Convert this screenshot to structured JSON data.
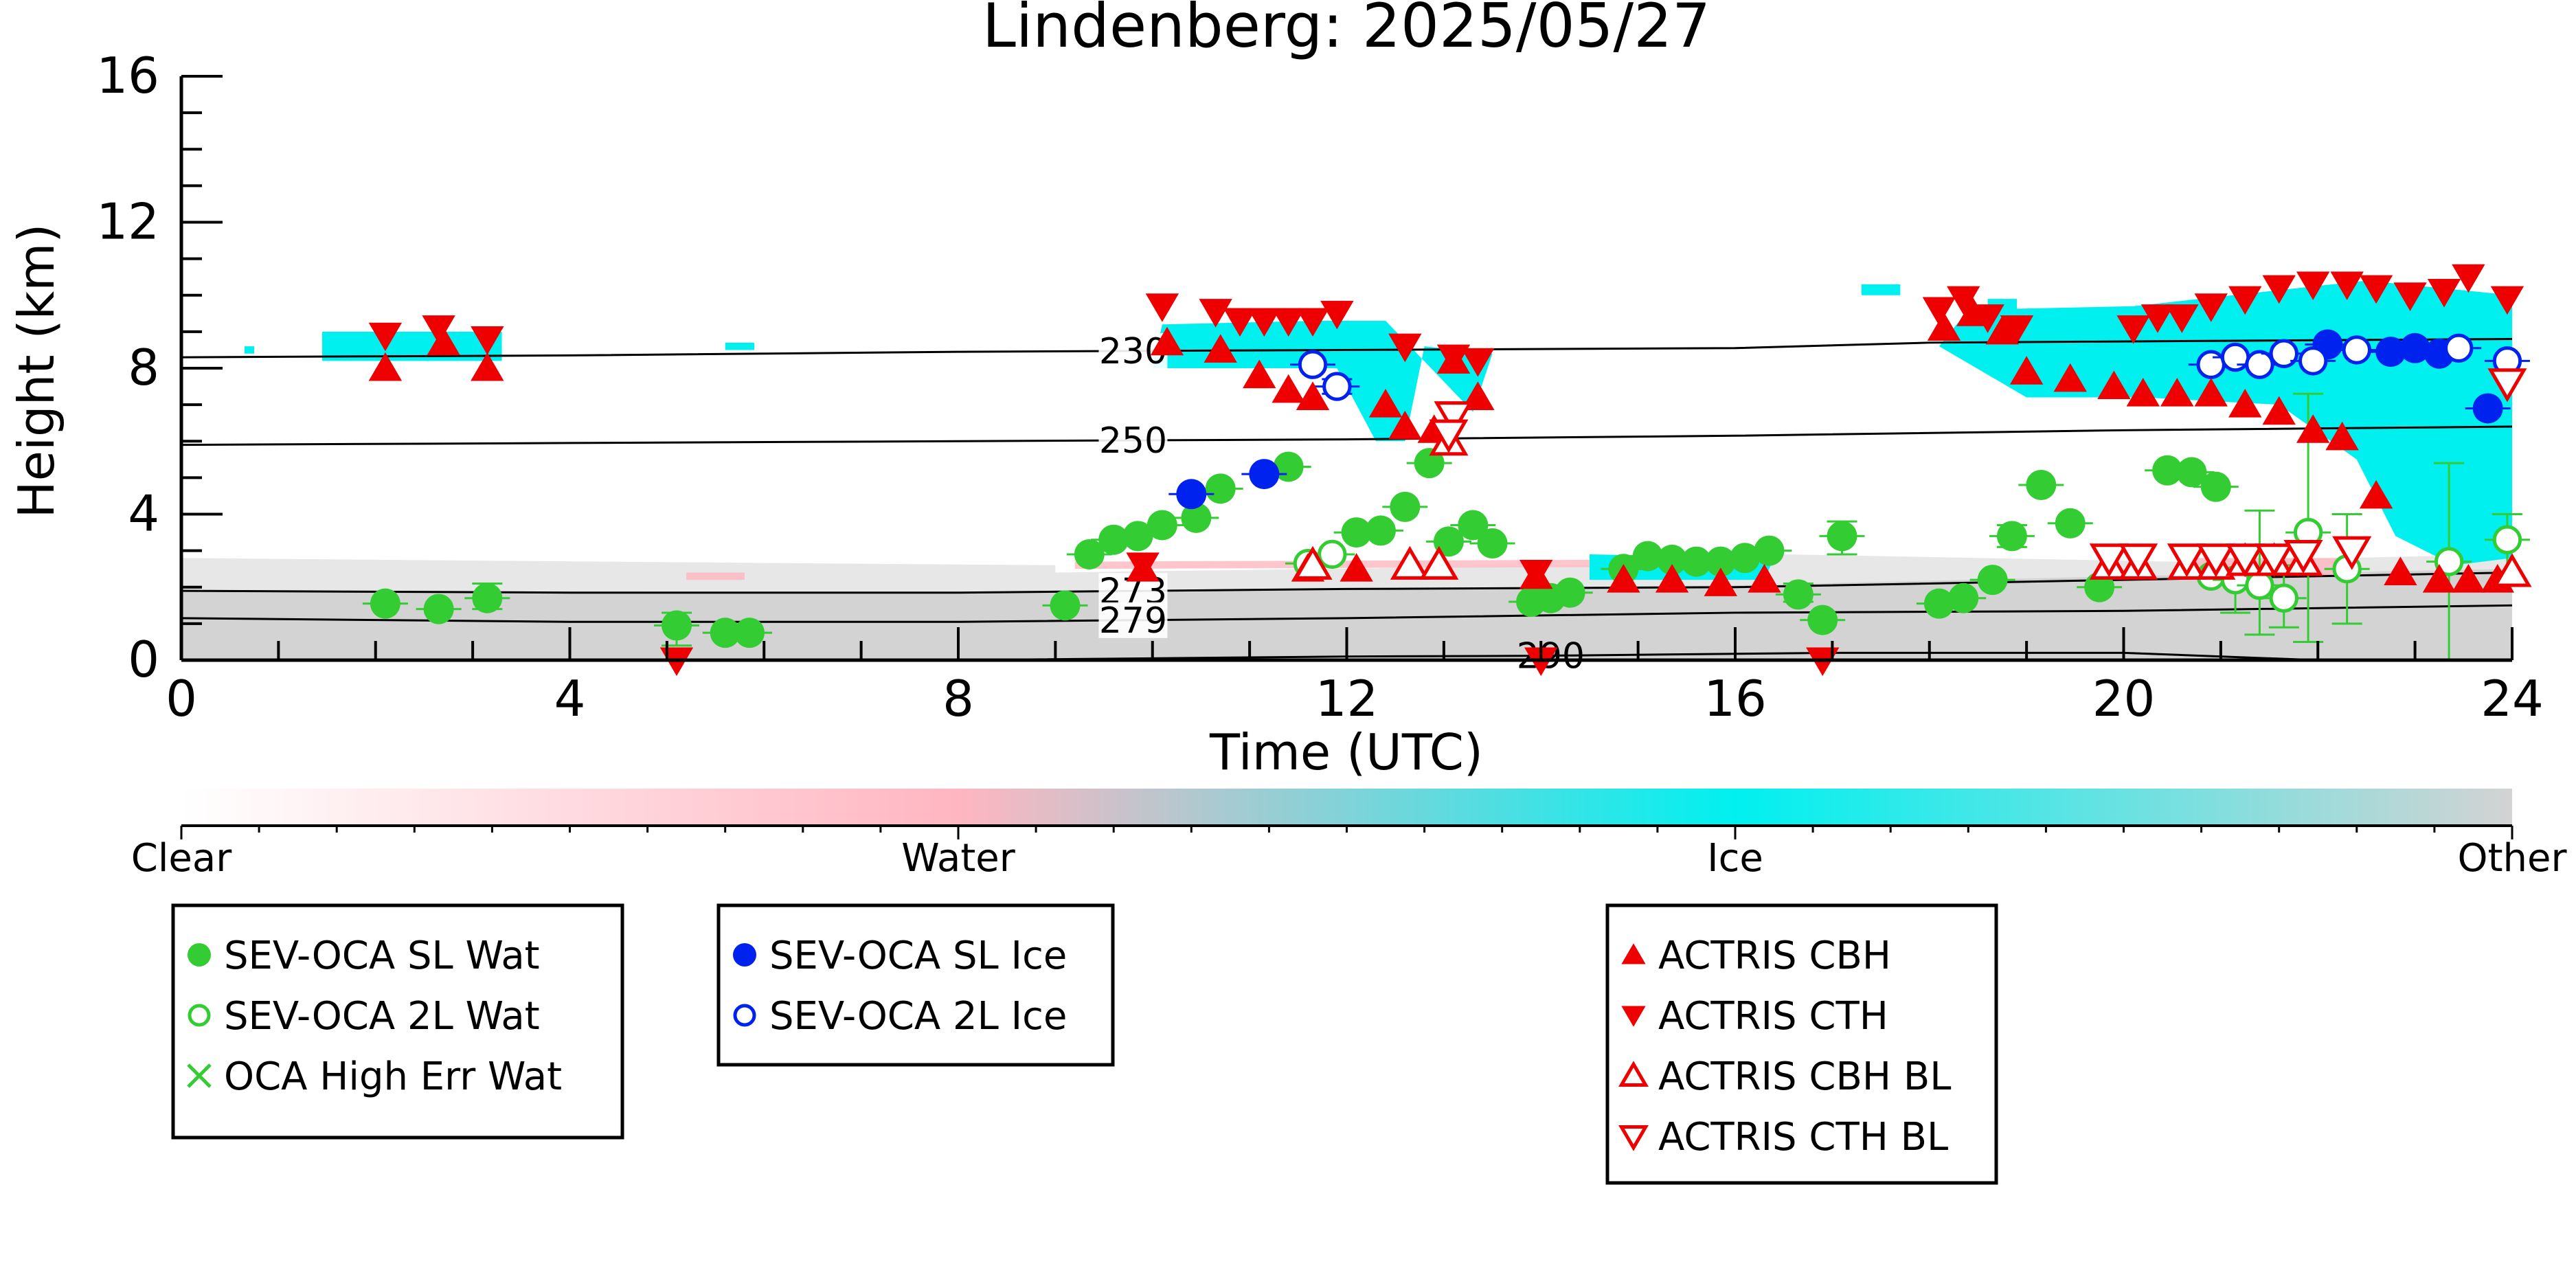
{
  "colors": {
    "sl_wat": "#33cc33",
    "twol_wat": "#33cc33",
    "sl_ice": "#0022ee",
    "twol_ice": "#0022ee",
    "actris": "#ee0000",
    "ice_fill": "#00f0f0",
    "water_fill": "#ffb6c1",
    "other_fill": "#d3d3d3",
    "contour": "#000000"
  },
  "chart_data": {
    "type": "scatter",
    "title": "Lindenberg: 2025/05/27",
    "xlabel": "Time (UTC)",
    "ylabel": "Height (km)",
    "xlim": [
      0,
      24
    ],
    "ylim": [
      0,
      16
    ],
    "xticks": [
      "0",
      "4",
      "8",
      "12",
      "16",
      "20",
      "24"
    ],
    "yticks": [
      "0",
      "4",
      "8",
      "12",
      "16"
    ],
    "colorbar": {
      "labels": [
        "Clear",
        "Water",
        "Ice",
        "Other"
      ],
      "colors": [
        "#ffffff",
        "#ffb6c1",
        "#00f0f0",
        "#d3d3d3"
      ]
    },
    "temperature_contours": [
      {
        "label": "230",
        "label_x": 9.8,
        "points": [
          [
            0,
            8.3
          ],
          [
            4,
            8.35
          ],
          [
            8,
            8.45
          ],
          [
            12,
            8.5
          ],
          [
            16,
            8.55
          ],
          [
            18,
            8.7
          ],
          [
            24,
            8.8
          ]
        ]
      },
      {
        "label": "250",
        "label_x": 9.8,
        "points": [
          [
            0,
            5.9
          ],
          [
            4,
            5.95
          ],
          [
            8,
            6.0
          ],
          [
            12,
            6.05
          ],
          [
            16,
            6.15
          ],
          [
            20,
            6.3
          ],
          [
            24,
            6.4
          ]
        ]
      },
      {
        "label": "273",
        "label_x": 9.8,
        "points": [
          [
            0,
            1.9
          ],
          [
            4,
            1.85
          ],
          [
            8,
            1.85
          ],
          [
            10,
            1.9
          ],
          [
            12,
            1.95
          ],
          [
            16,
            2.0
          ],
          [
            20,
            2.2
          ],
          [
            24,
            2.4
          ]
        ]
      },
      {
        "label": "279",
        "label_x": 9.8,
        "points": [
          [
            0,
            1.15
          ],
          [
            4,
            1.05
          ],
          [
            8,
            1.05
          ],
          [
            12,
            1.15
          ],
          [
            16,
            1.3
          ],
          [
            20,
            1.35
          ],
          [
            24,
            1.5
          ]
        ]
      },
      {
        "label": "290",
        "label_x": 14.1,
        "points": [
          [
            8,
            0.0
          ],
          [
            12,
            0.1
          ],
          [
            14,
            0.12
          ],
          [
            17,
            0.2
          ],
          [
            20,
            0.2
          ],
          [
            22,
            0.0
          ]
        ]
      }
    ],
    "series": [
      {
        "name": "SEV-OCA SL Wat",
        "marker": "circle-filled",
        "color": "#33cc33",
        "points": [
          [
            2.1,
            1.55
          ],
          [
            2.65,
            1.4
          ],
          [
            3.15,
            1.7
          ],
          [
            5.1,
            0.95
          ],
          [
            5.6,
            0.75
          ],
          [
            5.85,
            0.75
          ],
          [
            9.1,
            1.5
          ],
          [
            9.35,
            2.9
          ],
          [
            9.6,
            3.3
          ],
          [
            9.85,
            3.4
          ],
          [
            10.1,
            3.7
          ],
          [
            10.45,
            3.9
          ],
          [
            10.7,
            4.7
          ],
          [
            11.4,
            5.3
          ],
          [
            12.1,
            3.5
          ],
          [
            12.35,
            3.55
          ],
          [
            12.6,
            4.2
          ],
          [
            12.85,
            5.4
          ],
          [
            13.05,
            3.25
          ],
          [
            13.3,
            3.7
          ],
          [
            13.5,
            3.2
          ],
          [
            13.9,
            1.6
          ],
          [
            14.1,
            1.7
          ],
          [
            14.3,
            1.85
          ],
          [
            14.85,
            2.5
          ],
          [
            15.1,
            2.85
          ],
          [
            15.35,
            2.75
          ],
          [
            15.6,
            2.7
          ],
          [
            15.85,
            2.7
          ],
          [
            16.1,
            2.8
          ],
          [
            16.35,
            3.0
          ],
          [
            16.65,
            1.8
          ],
          [
            16.9,
            1.1
          ],
          [
            17.1,
            3.4
          ],
          [
            18.1,
            1.55
          ],
          [
            18.35,
            1.7
          ],
          [
            18.65,
            2.2
          ],
          [
            18.85,
            3.4
          ],
          [
            19.15,
            4.8
          ],
          [
            19.45,
            3.75
          ],
          [
            19.75,
            2.0
          ],
          [
            20.45,
            5.2
          ],
          [
            20.7,
            5.15
          ],
          [
            20.95,
            4.75
          ]
        ]
      },
      {
        "name": "SEV-OCA 2L Wat",
        "marker": "circle-open",
        "color": "#33cc33",
        "points": [
          [
            11.6,
            2.65
          ],
          [
            11.85,
            2.9
          ],
          [
            20.9,
            2.3
          ],
          [
            21.15,
            2.2
          ],
          [
            21.4,
            2.05
          ],
          [
            21.65,
            1.7
          ],
          [
            21.9,
            3.5
          ],
          [
            22.3,
            2.5
          ],
          [
            23.35,
            2.7
          ],
          [
            23.95,
            3.3
          ]
        ]
      },
      {
        "name": "OCA High Err Wat",
        "marker": "x",
        "color": "#33cc33",
        "points": []
      },
      {
        "name": "SEV-OCA SL Ice",
        "marker": "circle-filled",
        "color": "#0022ee",
        "points": [
          [
            10.4,
            4.55
          ],
          [
            11.15,
            5.1
          ],
          [
            22.1,
            8.65
          ],
          [
            22.75,
            8.45
          ],
          [
            23.0,
            8.55
          ],
          [
            23.25,
            8.4
          ],
          [
            23.75,
            6.9
          ]
        ]
      },
      {
        "name": "SEV-OCA 2L Ice",
        "marker": "circle-open",
        "color": "#0022ee",
        "points": [
          [
            11.65,
            8.1
          ],
          [
            11.9,
            7.5
          ],
          [
            20.9,
            8.1
          ],
          [
            21.15,
            8.3
          ],
          [
            21.4,
            8.1
          ],
          [
            21.65,
            8.4
          ],
          [
            21.95,
            8.2
          ],
          [
            22.4,
            8.5
          ],
          [
            23.45,
            8.55
          ],
          [
            23.95,
            8.2
          ]
        ]
      },
      {
        "name": "ACTRIS CBH",
        "marker": "triangle-up-filled",
        "color": "#ee0000",
        "points": [
          [
            2.1,
            8.0
          ],
          [
            2.7,
            8.7
          ],
          [
            3.15,
            8.0
          ],
          [
            10.15,
            8.7
          ],
          [
            10.7,
            8.5
          ],
          [
            11.1,
            7.8
          ],
          [
            11.4,
            7.4
          ],
          [
            11.65,
            7.2
          ],
          [
            12.4,
            7.0
          ],
          [
            12.6,
            6.4
          ],
          [
            12.9,
            6.3
          ],
          [
            13.1,
            8.2
          ],
          [
            13.35,
            7.2
          ],
          [
            18.15,
            9.1
          ],
          [
            18.45,
            9.5
          ],
          [
            18.75,
            9.0
          ],
          [
            19.0,
            7.9
          ],
          [
            19.45,
            7.7
          ],
          [
            19.9,
            7.5
          ],
          [
            20.2,
            7.3
          ],
          [
            20.55,
            7.3
          ],
          [
            20.9,
            7.3
          ],
          [
            21.25,
            7.0
          ],
          [
            21.6,
            6.8
          ],
          [
            21.95,
            6.3
          ],
          [
            22.25,
            6.1
          ],
          [
            22.6,
            4.5
          ],
          [
            22.85,
            2.4
          ],
          [
            23.25,
            2.2
          ],
          [
            23.55,
            2.2
          ],
          [
            23.85,
            2.2
          ],
          [
            11.6,
            2.5
          ],
          [
            12.1,
            2.5
          ],
          [
            13.95,
            2.3
          ],
          [
            14.85,
            2.2
          ],
          [
            15.35,
            2.2
          ],
          [
            15.85,
            2.1
          ],
          [
            16.3,
            2.2
          ],
          [
            9.9,
            2.5
          ]
        ]
      },
      {
        "name": "ACTRIS CTH",
        "marker": "triangle-down-filled",
        "color": "#ee0000",
        "points": [
          [
            2.1,
            8.9
          ],
          [
            2.65,
            9.1
          ],
          [
            3.15,
            8.8
          ],
          [
            10.1,
            9.7
          ],
          [
            10.65,
            9.55
          ],
          [
            10.9,
            9.3
          ],
          [
            11.15,
            9.3
          ],
          [
            11.4,
            9.3
          ],
          [
            11.65,
            9.3
          ],
          [
            11.9,
            9.5
          ],
          [
            12.6,
            8.6
          ],
          [
            13.1,
            8.3
          ],
          [
            13.35,
            8.2
          ],
          [
            18.1,
            9.6
          ],
          [
            18.35,
            9.9
          ],
          [
            18.6,
            9.4
          ],
          [
            18.9,
            9.1
          ],
          [
            20.1,
            9.1
          ],
          [
            20.35,
            9.4
          ],
          [
            20.6,
            9.4
          ],
          [
            20.9,
            9.7
          ],
          [
            21.25,
            9.9
          ],
          [
            21.6,
            10.2
          ],
          [
            21.95,
            10.3
          ],
          [
            22.3,
            10.3
          ],
          [
            22.6,
            10.2
          ],
          [
            22.95,
            10.0
          ],
          [
            23.3,
            10.1
          ],
          [
            23.55,
            10.5
          ],
          [
            23.95,
            9.9
          ],
          [
            13.95,
            2.4
          ],
          [
            9.9,
            2.6
          ],
          [
            5.1,
            0.0
          ],
          [
            16.9,
            0.0
          ],
          [
            14.0,
            0.0
          ]
        ]
      },
      {
        "name": "ACTRIS CBH BL",
        "marker": "triangle-up-open",
        "color": "#ee0000",
        "points": [
          [
            11.65,
            2.6
          ],
          [
            12.65,
            2.6
          ],
          [
            12.95,
            2.6
          ],
          [
            13.05,
            6.0
          ],
          [
            19.85,
            2.6
          ],
          [
            20.15,
            2.6
          ],
          [
            20.65,
            2.6
          ],
          [
            20.95,
            2.6
          ],
          [
            21.25,
            2.7
          ],
          [
            21.55,
            2.7
          ],
          [
            21.85,
            2.7
          ],
          [
            24.0,
            2.4
          ]
        ]
      },
      {
        "name": "ACTRIS CTH BL",
        "marker": "triangle-down-open",
        "color": "#ee0000",
        "points": [
          [
            13.1,
            6.7
          ],
          [
            13.05,
            6.2
          ],
          [
            19.85,
            2.8
          ],
          [
            20.15,
            2.8
          ],
          [
            20.65,
            2.8
          ],
          [
            20.95,
            2.8
          ],
          [
            21.25,
            2.8
          ],
          [
            21.55,
            2.8
          ],
          [
            21.85,
            2.9
          ],
          [
            22.35,
            3.0
          ],
          [
            23.95,
            7.6
          ]
        ]
      }
    ],
    "error_bars": [
      {
        "x": 21.9,
        "y": 3.5,
        "lo": 0.5,
        "hi": 7.3,
        "color": "#33cc33"
      },
      {
        "x": 21.4,
        "y": 2.05,
        "lo": 0.7,
        "hi": 4.1,
        "color": "#33cc33"
      },
      {
        "x": 23.35,
        "y": 2.7,
        "lo": 0.0,
        "hi": 5.4,
        "color": "#33cc33"
      },
      {
        "x": 22.3,
        "y": 2.5,
        "lo": 1.0,
        "hi": 4.0,
        "color": "#33cc33"
      },
      {
        "x": 23.95,
        "y": 3.3,
        "lo": 2.3,
        "hi": 4.0,
        "color": "#33cc33"
      },
      {
        "x": 21.15,
        "y": 2.2,
        "lo": 1.3,
        "hi": 3.0,
        "color": "#33cc33"
      },
      {
        "x": 5.1,
        "y": 0.95,
        "lo": 0.4,
        "hi": 1.3,
        "color": "#33cc33"
      },
      {
        "x": 3.15,
        "y": 1.7,
        "lo": 1.4,
        "hi": 2.1,
        "color": "#33cc33"
      },
      {
        "x": 17.1,
        "y": 3.4,
        "lo": 2.9,
        "hi": 3.8,
        "color": "#33cc33"
      },
      {
        "x": 18.85,
        "y": 3.4,
        "lo": 3.1,
        "hi": 3.7,
        "color": "#33cc33"
      },
      {
        "x": 16.65,
        "y": 1.8,
        "lo": 1.6,
        "hi": 2.1,
        "color": "#33cc33"
      },
      {
        "x": 21.65,
        "y": 1.7,
        "lo": 0.9,
        "hi": 2.6,
        "color": "#33cc33"
      },
      {
        "x": 11.9,
        "y": 7.5,
        "lo": 7.3,
        "hi": 7.7,
        "color": "#0022ee"
      }
    ],
    "legend_groups": [
      [
        "SEV-OCA SL Wat",
        "SEV-OCA 2L Wat",
        "OCA High Err Wat"
      ],
      [
        "SEV-OCA SL Ice",
        "SEV-OCA 2L Ice"
      ],
      [
        "ACTRIS CBH",
        "ACTRIS CTH",
        "ACTRIS CBH BL",
        "ACTRIS CTH BL"
      ]
    ]
  }
}
